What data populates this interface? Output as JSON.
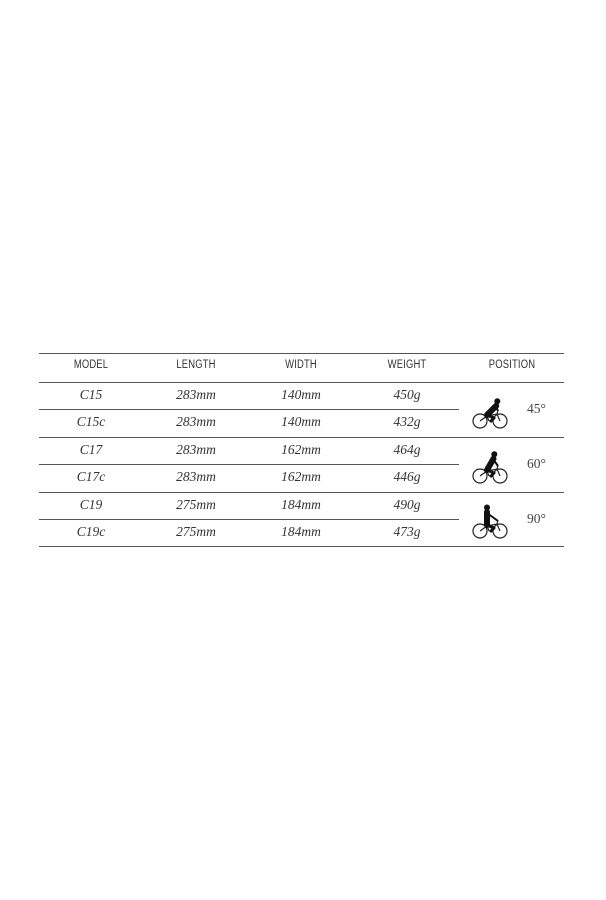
{
  "headers": [
    "MODEL",
    "LENGTH",
    "WIDTH",
    "WEIGHT",
    "POSITION"
  ],
  "rows": [
    {
      "model": "C15",
      "length": "283mm",
      "width": "140mm",
      "weight": "450g"
    },
    {
      "model": "C15c",
      "length": "283mm",
      "width": "140mm",
      "weight": "432g"
    },
    {
      "model": "C17",
      "length": "283mm",
      "width": "162mm",
      "weight": "464g"
    },
    {
      "model": "C17c",
      "length": "283mm",
      "width": "162mm",
      "weight": "446g"
    },
    {
      "model": "C19",
      "length": "275mm",
      "width": "184mm",
      "weight": "490g"
    },
    {
      "model": "C19c",
      "length": "275mm",
      "width": "184mm",
      "weight": "473g"
    }
  ],
  "positions": [
    {
      "angle": "45°",
      "icon": "cyclist-icon"
    },
    {
      "angle": "60°",
      "icon": "cyclist-icon"
    },
    {
      "angle": "90°",
      "icon": "cyclist-icon"
    }
  ]
}
